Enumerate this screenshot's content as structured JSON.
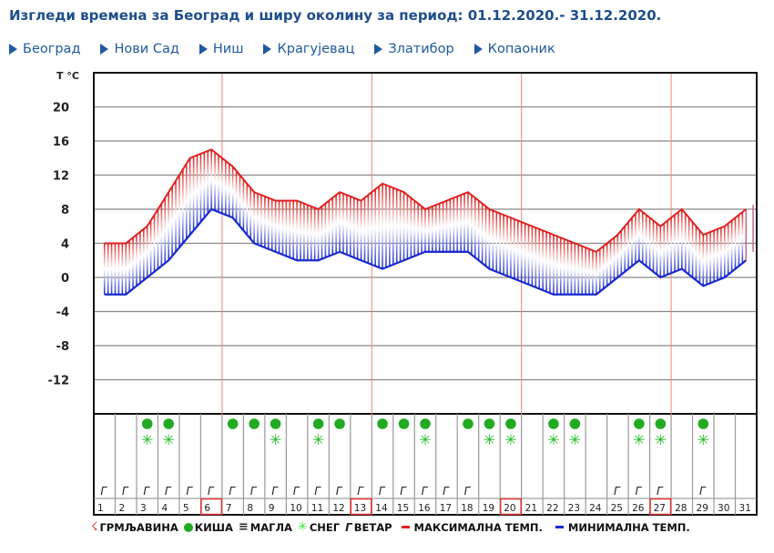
{
  "header": {
    "title": "Изгледи времена за Београд и ширу околину за период: 01.12.2020.- 31.12.2020."
  },
  "nav": {
    "items": [
      {
        "label": "Београд"
      },
      {
        "label": "Нови Сад"
      },
      {
        "label": "Ниш"
      },
      {
        "label": "Крагујевац"
      },
      {
        "label": "Златибор"
      },
      {
        "label": "Копаоник"
      }
    ]
  },
  "legend": {
    "thunder": "ГРМЉАВИНА",
    "rain": "КИША",
    "fog": "МАГЛА",
    "snow": "СНЕГ",
    "wind": "ВЕТАР",
    "max_temp": "МАКСИМАЛНА ТЕМП.",
    "min_temp": "МИНИМАЛНА ТЕМП."
  },
  "colors": {
    "title": "#1e4e8c",
    "nav": "#1f5aa0",
    "max_line": "#e02020",
    "min_line": "#1a2ad0",
    "rain": "#22aa22",
    "snow": "#33dd33",
    "week_marker": "#f08080"
  },
  "chart_data": {
    "type": "line",
    "title": "Изгледи времена за Београд и ширу околину за период: 01.12.2020.- 31.12.2020.",
    "xlabel": "",
    "ylabel": "T °C",
    "ylim": [
      -16,
      24
    ],
    "yticks": [
      20,
      16,
      12,
      8,
      4,
      0,
      -4,
      -8,
      -12
    ],
    "grid": true,
    "categories": [
      1,
      2,
      3,
      4,
      5,
      6,
      7,
      8,
      9,
      10,
      11,
      12,
      13,
      14,
      15,
      16,
      17,
      18,
      19,
      20,
      21,
      22,
      23,
      24,
      25,
      26,
      27,
      28,
      29,
      30,
      31
    ],
    "series": [
      {
        "name": "МАКСИМАЛНА ТЕМП.",
        "color": "#e02020",
        "values": [
          4,
          4,
          6,
          10,
          14,
          15,
          13,
          10,
          9,
          9,
          8,
          10,
          9,
          11,
          10,
          8,
          9,
          10,
          8,
          7,
          6,
          5,
          4,
          3,
          5,
          8,
          6,
          8,
          5,
          6,
          8
        ]
      },
      {
        "name": "МИНИМАЛНА ТЕМП.",
        "color": "#1a2ad0",
        "values": [
          -2,
          -2,
          0,
          2,
          5,
          8,
          7,
          4,
          3,
          2,
          2,
          3,
          2,
          1,
          2,
          3,
          3,
          3,
          1,
          0,
          -1,
          -2,
          -2,
          -2,
          0,
          2,
          0,
          1,
          -1,
          0,
          2
        ]
      }
    ],
    "week_markers": [
      6,
      13,
      20,
      27
    ],
    "weather": {
      "rain": [
        3,
        4,
        7,
        8,
        9,
        11,
        12,
        14,
        15,
        16,
        18,
        19,
        20,
        22,
        23,
        26,
        27,
        29
      ],
      "snow": [
        3,
        4,
        9,
        11,
        16,
        19,
        20,
        22,
        23,
        26,
        27,
        29
      ],
      "wind": [
        1,
        2,
        3,
        4,
        5,
        6,
        7,
        8,
        9,
        10,
        11,
        12,
        13,
        14,
        15,
        16,
        17,
        18,
        25,
        26,
        27,
        29
      ],
      "fog": [],
      "thunder": []
    },
    "legend_position": "bottom"
  }
}
